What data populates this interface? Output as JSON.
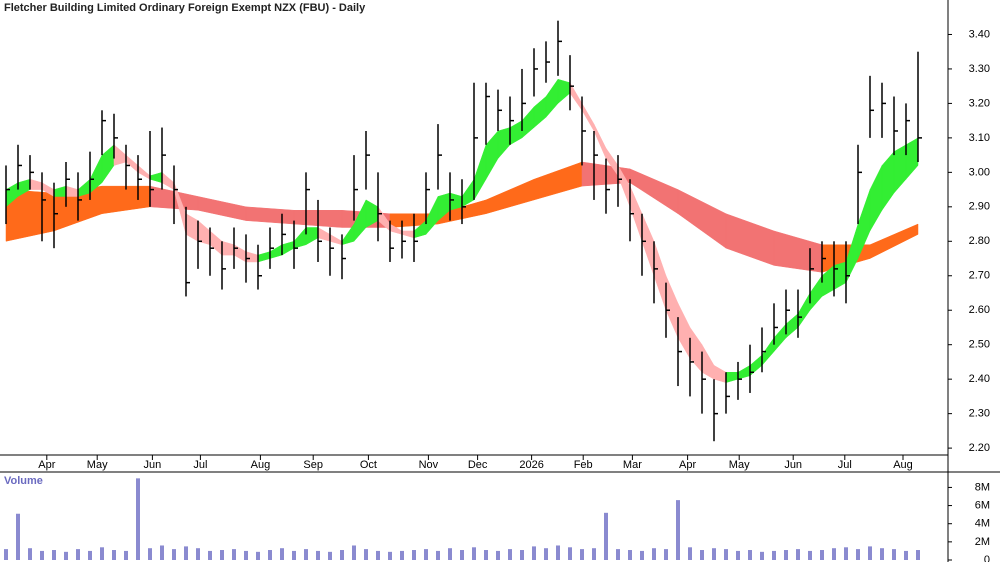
{
  "chart_data": [
    {
      "type": "ohlc",
      "title": "Fletcher Building Limited Ordinary Foreign Exempt NZX (FBU) - Daily",
      "x": [
        0,
        1,
        2,
        3,
        4,
        5,
        6,
        7,
        8,
        9,
        10,
        11,
        12,
        13,
        14,
        15,
        16,
        17,
        18,
        19,
        20,
        21,
        22,
        23,
        24,
        25,
        26,
        27,
        28,
        29,
        30,
        31,
        32,
        33,
        34,
        35,
        36,
        37,
        38,
        39,
        40,
        41,
        42,
        43,
        44,
        45,
        46,
        47,
        48,
        49,
        50,
        51,
        52,
        53,
        54,
        55,
        56,
        57,
        58,
        59,
        60,
        61,
        62,
        63,
        64,
        65,
        66,
        67,
        68,
        69,
        70,
        71,
        72,
        73,
        74,
        75,
        76
      ],
      "high": [
        3.02,
        3.08,
        3.05,
        3.0,
        2.97,
        3.03,
        3.0,
        3.06,
        3.18,
        3.17,
        3.08,
        3.05,
        3.12,
        3.13,
        3.02,
        2.9,
        2.86,
        2.84,
        2.8,
        2.84,
        2.82,
        2.79,
        2.84,
        2.88,
        2.86,
        3.0,
        2.92,
        2.84,
        2.82,
        3.05,
        3.12,
        3.0,
        2.86,
        2.86,
        2.88,
        3.0,
        3.14,
        3.0,
        2.98,
        3.26,
        3.26,
        3.24,
        3.22,
        3.3,
        3.36,
        3.38,
        3.44,
        3.34,
        3.22,
        3.12,
        3.04,
        3.05,
        2.98,
        2.88,
        2.8,
        2.68,
        2.58,
        2.52,
        2.48,
        2.4,
        2.42,
        2.45,
        2.5,
        2.55,
        2.62,
        2.66,
        2.66,
        2.78,
        2.8,
        2.8,
        2.8,
        3.08,
        3.28,
        3.26,
        3.22,
        3.2,
        3.35
      ],
      "low": [
        2.85,
        2.95,
        2.95,
        2.8,
        2.78,
        2.9,
        2.86,
        2.92,
        3.05,
        3.04,
        2.95,
        2.92,
        2.9,
        2.95,
        2.85,
        2.64,
        2.72,
        2.7,
        2.66,
        2.72,
        2.68,
        2.66,
        2.72,
        2.76,
        2.72,
        2.82,
        2.74,
        2.7,
        2.69,
        2.86,
        2.95,
        2.8,
        2.74,
        2.75,
        2.74,
        2.85,
        2.95,
        2.86,
        2.85,
        2.92,
        3.08,
        3.12,
        3.08,
        3.12,
        3.22,
        3.26,
        3.28,
        3.18,
        3.02,
        2.92,
        2.88,
        2.9,
        2.8,
        2.7,
        2.62,
        2.52,
        2.38,
        2.35,
        2.3,
        2.22,
        2.3,
        2.34,
        2.36,
        2.42,
        2.5,
        2.53,
        2.52,
        2.62,
        2.68,
        2.64,
        2.62,
        2.85,
        3.1,
        3.1,
        3.05,
        3.05,
        3.03
      ],
      "close": [
        2.95,
        3.02,
        3.0,
        2.92,
        2.88,
        2.98,
        2.92,
        2.98,
        3.15,
        3.1,
        3.02,
        2.98,
        2.95,
        3.05,
        2.95,
        2.68,
        2.8,
        2.78,
        2.72,
        2.78,
        2.75,
        2.7,
        2.78,
        2.82,
        2.78,
        2.95,
        2.8,
        2.78,
        2.75,
        2.95,
        3.05,
        2.88,
        2.78,
        2.8,
        2.8,
        2.95,
        3.05,
        2.92,
        2.9,
        3.1,
        3.22,
        3.18,
        3.15,
        3.2,
        3.3,
        3.32,
        3.38,
        3.25,
        3.12,
        3.05,
        2.95,
        2.98,
        2.88,
        2.8,
        2.72,
        2.6,
        2.48,
        2.45,
        2.4,
        2.3,
        2.35,
        2.4,
        2.42,
        2.48,
        2.55,
        2.6,
        2.58,
        2.72,
        2.75,
        2.72,
        2.7,
        3.0,
        3.18,
        3.2,
        3.12,
        3.15,
        3.1
      ],
      "color": "#000000",
      "ribbons": [
        {
          "x": [
            0,
            4,
            8,
            12,
            16,
            20,
            24,
            28,
            32,
            36,
            40,
            44,
            48,
            52,
            56,
            60,
            64,
            68,
            72,
            76
          ],
          "upper": [
            2.95,
            2.94,
            2.96,
            2.96,
            2.93,
            2.9,
            2.89,
            2.89,
            2.88,
            2.88,
            2.92,
            2.98,
            3.03,
            3.01,
            2.95,
            2.88,
            2.83,
            2.79,
            2.79,
            2.85
          ],
          "lower": [
            2.8,
            2.83,
            2.88,
            2.9,
            2.89,
            2.86,
            2.85,
            2.84,
            2.84,
            2.85,
            2.88,
            2.92,
            2.96,
            2.97,
            2.88,
            2.78,
            2.73,
            2.71,
            2.75,
            2.82
          ],
          "up_color": "#ff6a1a",
          "down_color": "#f27373"
        },
        {
          "x": [
            0,
            1,
            2,
            3,
            4,
            5,
            6,
            7,
            8,
            9,
            10,
            11,
            12,
            13,
            14,
            15,
            16,
            17,
            18,
            19,
            20,
            21,
            22,
            23,
            24,
            25,
            26,
            27,
            28,
            29,
            30,
            31,
            32,
            33,
            34,
            35,
            36,
            37,
            38,
            39,
            40,
            41,
            42,
            43,
            44,
            45,
            46,
            47,
            48,
            49,
            50,
            51,
            52,
            53,
            54,
            55,
            56,
            57,
            58,
            59,
            60,
            61,
            62,
            63,
            64,
            65,
            66,
            67,
            68,
            69,
            70,
            71,
            72,
            73,
            74,
            75,
            76
          ],
          "upper": [
            2.95,
            2.97,
            2.98,
            2.97,
            2.95,
            2.96,
            2.95,
            2.98,
            3.05,
            3.08,
            3.05,
            3.02,
            2.99,
            3.0,
            2.97,
            2.88,
            2.86,
            2.83,
            2.8,
            2.79,
            2.77,
            2.76,
            2.77,
            2.79,
            2.8,
            2.84,
            2.84,
            2.82,
            2.8,
            2.85,
            2.92,
            2.9,
            2.85,
            2.83,
            2.83,
            2.86,
            2.93,
            2.94,
            2.93,
            2.98,
            3.08,
            3.12,
            3.13,
            3.15,
            3.19,
            3.22,
            3.27,
            3.26,
            3.2,
            3.14,
            3.07,
            3.02,
            2.96,
            2.88,
            2.8,
            2.7,
            2.62,
            2.55,
            2.5,
            2.44,
            2.42,
            2.42,
            2.44,
            2.47,
            2.52,
            2.56,
            2.59,
            2.65,
            2.7,
            2.73,
            2.74,
            2.85,
            2.95,
            3.02,
            3.06,
            3.08,
            3.1
          ],
          "lower": [
            2.9,
            2.93,
            2.95,
            2.95,
            2.93,
            2.93,
            2.93,
            2.94,
            2.97,
            3.02,
            3.03,
            3.0,
            2.98,
            2.97,
            2.95,
            2.82,
            2.8,
            2.79,
            2.76,
            2.76,
            2.74,
            2.74,
            2.75,
            2.76,
            2.78,
            2.79,
            2.81,
            2.8,
            2.79,
            2.8,
            2.84,
            2.86,
            2.83,
            2.82,
            2.81,
            2.82,
            2.86,
            2.89,
            2.9,
            2.92,
            2.98,
            3.04,
            3.08,
            3.1,
            3.13,
            3.16,
            3.2,
            3.23,
            3.18,
            3.12,
            3.04,
            2.99,
            2.9,
            2.8,
            2.7,
            2.6,
            2.52,
            2.46,
            2.42,
            2.4,
            2.39,
            2.4,
            2.41,
            2.44,
            2.48,
            2.52,
            2.55,
            2.6,
            2.64,
            2.66,
            2.68,
            2.75,
            2.83,
            2.89,
            2.94,
            2.98,
            3.02
          ],
          "up_color": "#33ee33",
          "down_color": "#ffb0b0"
        }
      ],
      "xlim": [
        -0.5,
        78.5
      ],
      "xticks": [
        {
          "value": 3.4,
          "label": "Apr"
        },
        {
          "value": 7.6,
          "label": "May"
        },
        {
          "value": 12.2,
          "label": "Jun"
        },
        {
          "value": 16.2,
          "label": "Jul"
        },
        {
          "value": 21.2,
          "label": "Aug"
        },
        {
          "value": 25.6,
          "label": "Sep"
        },
        {
          "value": 30.2,
          "label": "Oct"
        },
        {
          "value": 35.2,
          "label": "Nov"
        },
        {
          "value": 39.3,
          "label": "Dec"
        },
        {
          "value": 43.8,
          "label": "2026"
        },
        {
          "value": 48.1,
          "label": "Feb"
        },
        {
          "value": 52.2,
          "label": "Mar"
        },
        {
          "value": 56.8,
          "label": "Apr"
        },
        {
          "value": 61.1,
          "label": "May"
        },
        {
          "value": 65.6,
          "label": "Jun"
        },
        {
          "value": 69.9,
          "label": "Jul"
        },
        {
          "value": 74.75,
          "label": "Aug"
        }
      ],
      "ylim": [
        2.18,
        3.5
      ],
      "yticks": [
        {
          "value": 2.2,
          "label": "2.20"
        },
        {
          "value": 2.3,
          "label": "2.30"
        },
        {
          "value": 2.4,
          "label": "2.40"
        },
        {
          "value": 2.5,
          "label": "2.50"
        },
        {
          "value": 2.6,
          "label": "2.60"
        },
        {
          "value": 2.7,
          "label": "2.70"
        },
        {
          "value": 2.8,
          "label": "2.80"
        },
        {
          "value": 2.9,
          "label": "2.90"
        },
        {
          "value": 3.0,
          "label": "3.00"
        },
        {
          "value": 3.1,
          "label": "3.10"
        },
        {
          "value": 3.2,
          "label": "3.20"
        },
        {
          "value": 3.3,
          "label": "3.30"
        },
        {
          "value": 3.4,
          "label": "3.40"
        }
      ]
    },
    {
      "type": "bar",
      "title": "Volume",
      "x": [
        0,
        1,
        2,
        3,
        4,
        5,
        6,
        7,
        8,
        9,
        10,
        11,
        12,
        13,
        14,
        15,
        16,
        17,
        18,
        19,
        20,
        21,
        22,
        23,
        24,
        25,
        26,
        27,
        28,
        29,
        30,
        31,
        32,
        33,
        34,
        35,
        36,
        37,
        38,
        39,
        40,
        41,
        42,
        43,
        44,
        45,
        46,
        47,
        48,
        49,
        50,
        51,
        52,
        53,
        54,
        55,
        56,
        57,
        58,
        59,
        60,
        61,
        62,
        63,
        64,
        65,
        66,
        67,
        68,
        69,
        70,
        71,
        72,
        73,
        74,
        75,
        76
      ],
      "values": [
        1.2,
        5.1,
        1.3,
        1.0,
        1.1,
        0.9,
        1.2,
        1.0,
        1.4,
        1.1,
        1.0,
        9.0,
        1.3,
        1.6,
        1.2,
        1.5,
        1.3,
        1.0,
        1.1,
        1.2,
        1.0,
        0.9,
        1.1,
        1.3,
        1.0,
        1.2,
        1.0,
        0.9,
        1.1,
        1.6,
        1.2,
        1.0,
        0.9,
        1.0,
        1.1,
        1.2,
        1.0,
        1.3,
        1.1,
        1.4,
        1.1,
        1.0,
        1.2,
        1.1,
        1.5,
        1.3,
        1.6,
        1.4,
        1.2,
        1.3,
        5.2,
        1.2,
        1.1,
        1.0,
        1.3,
        1.2,
        6.6,
        1.4,
        1.1,
        1.3,
        1.2,
        1.0,
        1.1,
        0.9,
        1.0,
        1.1,
        1.2,
        1.0,
        1.1,
        1.3,
        1.4,
        1.2,
        1.5,
        1.3,
        1.2,
        1.0,
        1.1
      ],
      "color": "#8a8ad0",
      "xlim": [
        -0.5,
        78.5
      ],
      "ylim": [
        0,
        9.7
      ],
      "yticks": [
        0,
        {
          "value": 2,
          "label": "2M"
        },
        {
          "value": 4,
          "label": "4M"
        },
        {
          "value": 6,
          "label": "6M"
        },
        {
          "value": 8,
          "label": "8M"
        }
      ]
    }
  ]
}
